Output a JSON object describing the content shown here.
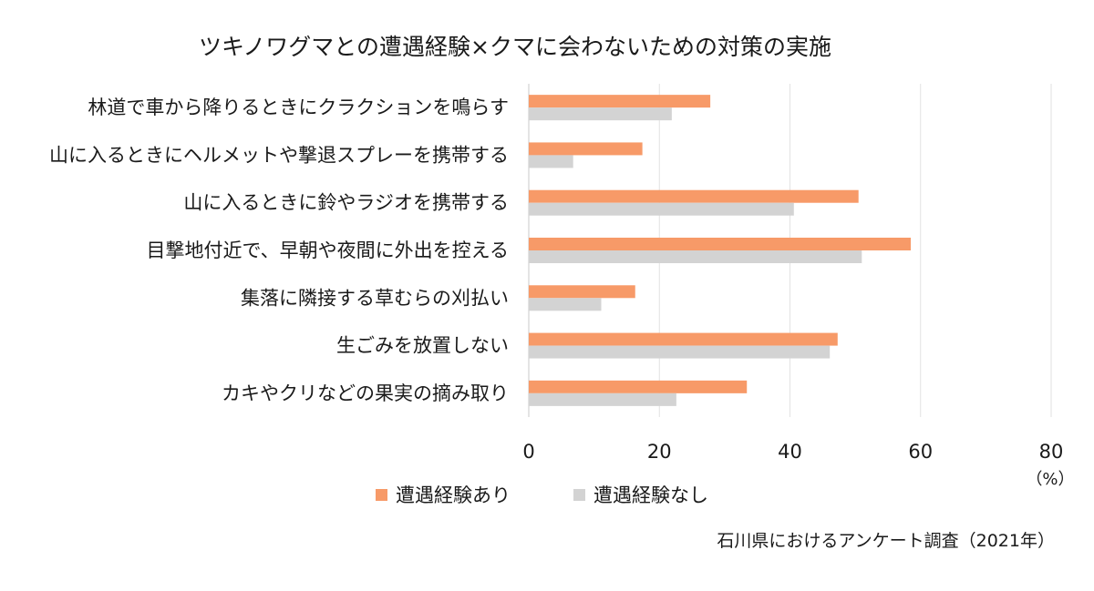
{
  "chart_data": {
    "type": "bar",
    "orientation": "horizontal",
    "title": "ツキノワグマとの遭遇経験×クマに会わないための対策の実施",
    "categories": [
      "林道で車から降りるときにクラクションを鳴らす",
      "山に入るときにヘルメットや撃退スプレーを携帯する",
      "山に入るときに鈴やラジオを携帯する",
      "目撃地付近で、早朝や夜間に外出を控える",
      "集落に隣接する草むらの刈払い",
      "生ごみを放置しない",
      "カキやクリなどの果実の摘み取り"
    ],
    "series": [
      {
        "name": "遭遇経験あり",
        "color": "#F79A68",
        "values": [
          27.8,
          17.4,
          50.5,
          58.5,
          16.3,
          47.3,
          33.4
        ]
      },
      {
        "name": "遭遇経験なし",
        "color": "#D3D3D3",
        "values": [
          21.9,
          6.8,
          40.6,
          51.0,
          11.1,
          46.1,
          22.6
        ]
      }
    ],
    "xlim": [
      0,
      80
    ],
    "xticks": [
      "0",
      "20",
      "40",
      "60",
      "80"
    ],
    "unit": "（%）",
    "grid": true,
    "legend_position": "bottom"
  },
  "source_note": "石川県におけるアンケート調査（2021年）"
}
